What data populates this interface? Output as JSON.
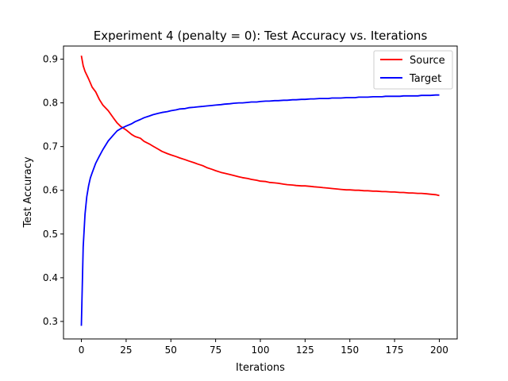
{
  "chart_data": {
    "type": "line",
    "title": "Experiment 4 (penalty = 0): Test Accuracy vs. Iterations",
    "xlabel": "Iterations",
    "ylabel": "Test Accuracy",
    "xlim": [
      -10,
      210
    ],
    "ylim": [
      0.26,
      0.93
    ],
    "xticks": [
      0,
      25,
      50,
      75,
      100,
      125,
      150,
      175,
      200
    ],
    "yticks": [
      0.3,
      0.4,
      0.5,
      0.6,
      0.7,
      0.8,
      0.9
    ],
    "xtick_labels": [
      "0",
      "25",
      "50",
      "75",
      "100",
      "125",
      "150",
      "175",
      "200"
    ],
    "ytick_labels": [
      "0.3",
      "0.4",
      "0.5",
      "0.6",
      "0.7",
      "0.8",
      "0.9"
    ],
    "grid": false,
    "legend_position": "top-right",
    "series": [
      {
        "name": "Source",
        "color": "#ff0000",
        "x": [
          0,
          1,
          2,
          4,
          6,
          8,
          10,
          12,
          15,
          18,
          20,
          22,
          25,
          28,
          30,
          33,
          35,
          38,
          40,
          43,
          45,
          48,
          50,
          53,
          55,
          58,
          60,
          63,
          65,
          68,
          70,
          73,
          75,
          78,
          80,
          83,
          85,
          88,
          90,
          93,
          95,
          98,
          100,
          103,
          105,
          108,
          110,
          113,
          115,
          118,
          120,
          123,
          125,
          128,
          130,
          133,
          135,
          138,
          140,
          143,
          145,
          148,
          150,
          153,
          155,
          158,
          160,
          163,
          165,
          168,
          170,
          173,
          175,
          178,
          180,
          183,
          185,
          188,
          190,
          193,
          195,
          198,
          200
        ],
        "y": [
          0.908,
          0.885,
          0.872,
          0.855,
          0.836,
          0.825,
          0.808,
          0.795,
          0.782,
          0.765,
          0.754,
          0.746,
          0.738,
          0.728,
          0.723,
          0.719,
          0.712,
          0.706,
          0.701,
          0.694,
          0.689,
          0.684,
          0.681,
          0.677,
          0.674,
          0.67,
          0.667,
          0.663,
          0.66,
          0.656,
          0.652,
          0.648,
          0.645,
          0.641,
          0.639,
          0.636,
          0.634,
          0.631,
          0.629,
          0.627,
          0.625,
          0.623,
          0.621,
          0.62,
          0.618,
          0.617,
          0.616,
          0.614,
          0.613,
          0.612,
          0.611,
          0.61,
          0.61,
          0.609,
          0.608,
          0.607,
          0.606,
          0.605,
          0.604,
          0.603,
          0.602,
          0.601,
          0.601,
          0.6,
          0.6,
          0.599,
          0.599,
          0.598,
          0.598,
          0.597,
          0.597,
          0.596,
          0.596,
          0.595,
          0.595,
          0.594,
          0.594,
          0.593,
          0.593,
          0.592,
          0.591,
          0.59,
          0.588
        ]
      },
      {
        "name": "Target",
        "color": "#0000ff",
        "x": [
          0,
          1,
          2,
          3,
          4,
          5,
          6,
          8,
          10,
          12,
          15,
          18,
          20,
          22,
          25,
          28,
          30,
          33,
          35,
          38,
          40,
          43,
          45,
          48,
          50,
          53,
          55,
          58,
          60,
          63,
          65,
          68,
          70,
          73,
          75,
          78,
          80,
          83,
          85,
          88,
          90,
          93,
          95,
          98,
          100,
          103,
          105,
          108,
          110,
          113,
          115,
          118,
          120,
          123,
          125,
          128,
          130,
          133,
          135,
          138,
          140,
          143,
          145,
          148,
          150,
          153,
          155,
          158,
          160,
          163,
          165,
          168,
          170,
          173,
          175,
          178,
          180,
          183,
          185,
          188,
          190,
          193,
          195,
          198,
          200
        ],
        "y": [
          0.29,
          0.47,
          0.545,
          0.585,
          0.61,
          0.628,
          0.64,
          0.662,
          0.678,
          0.693,
          0.713,
          0.727,
          0.736,
          0.741,
          0.747,
          0.752,
          0.757,
          0.762,
          0.766,
          0.77,
          0.773,
          0.776,
          0.778,
          0.78,
          0.782,
          0.784,
          0.786,
          0.787,
          0.789,
          0.79,
          0.791,
          0.792,
          0.793,
          0.794,
          0.795,
          0.796,
          0.797,
          0.798,
          0.799,
          0.8,
          0.8,
          0.801,
          0.802,
          0.802,
          0.803,
          0.804,
          0.804,
          0.805,
          0.805,
          0.806,
          0.806,
          0.807,
          0.807,
          0.808,
          0.808,
          0.809,
          0.809,
          0.81,
          0.81,
          0.81,
          0.811,
          0.811,
          0.811,
          0.812,
          0.812,
          0.812,
          0.813,
          0.813,
          0.813,
          0.814,
          0.814,
          0.814,
          0.815,
          0.815,
          0.815,
          0.815,
          0.816,
          0.816,
          0.816,
          0.816,
          0.817,
          0.817,
          0.817,
          0.818,
          0.818
        ]
      }
    ]
  }
}
